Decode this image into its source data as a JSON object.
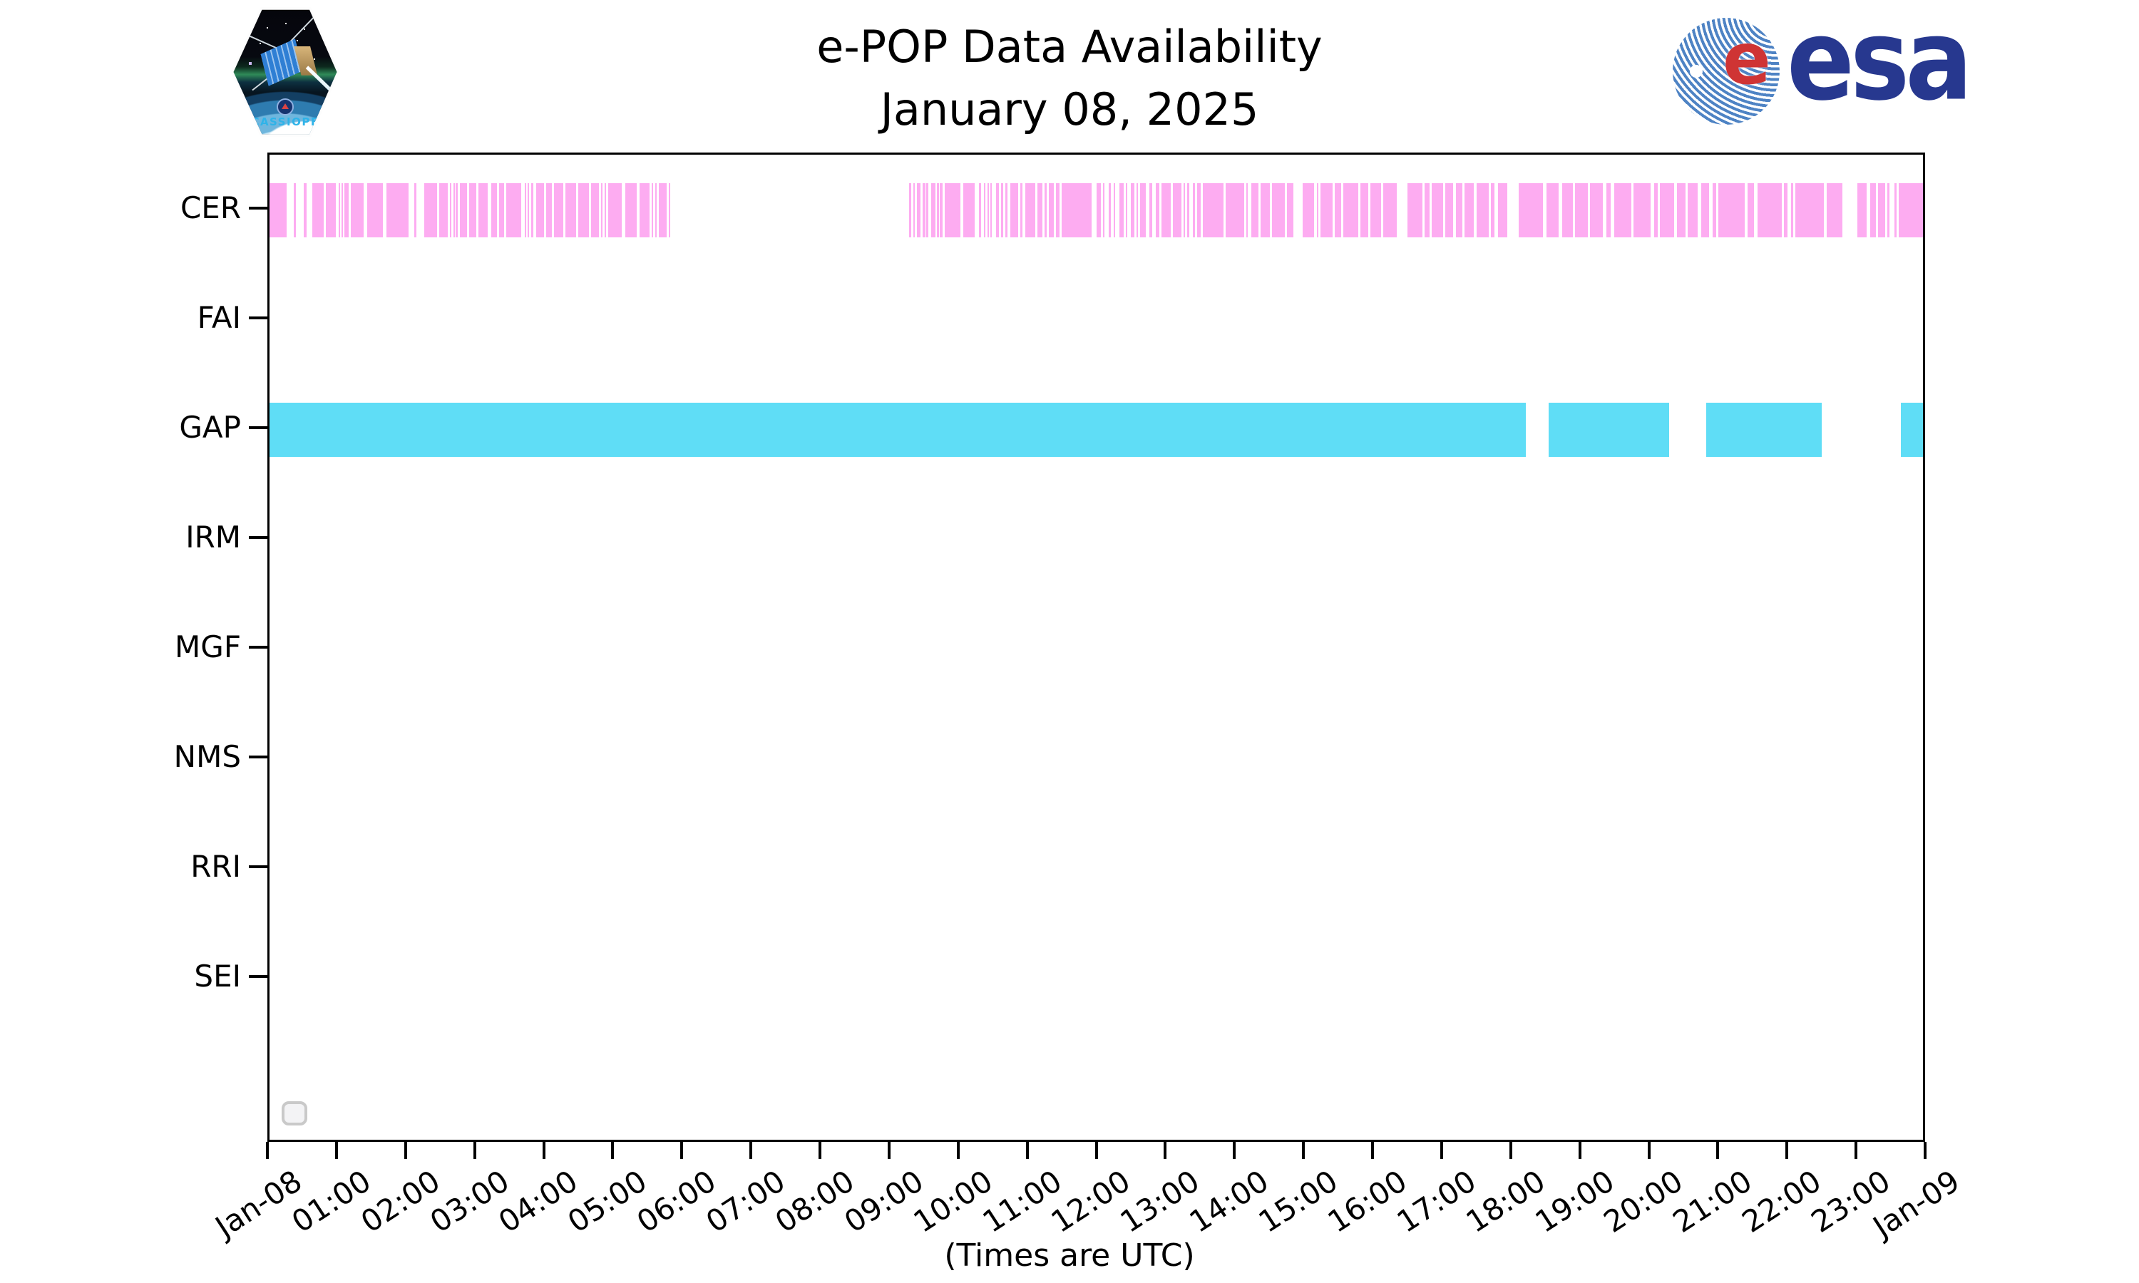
{
  "header": {
    "title": "e-POP Data Availability",
    "subtitle": "January 08, 2025",
    "cassiope_label": "CASSIOPE",
    "esa_wordmark": "esa",
    "esa_e_glyph": "e"
  },
  "footer": {
    "axis_note": "(Times are UTC)"
  },
  "colors": {
    "cer_pink": "#FDACF1",
    "gap_cyan": "#5FDDF6",
    "spine_black": "#000000",
    "esa_blue": "#27388F",
    "esa_stripe_blue": "#4E83C4",
    "esa_red": "#CF3434",
    "cassiope_text_blue": "#2FB3E8",
    "checkbox_border_gray": "#C9C9C9",
    "checkbox_fill_gray": "#F3F3F5"
  },
  "chart_data": {
    "type": "bar",
    "subtype": "timeline-availability",
    "title": "e-POP Data Availability",
    "subtitle": "January 08, 2025",
    "xlabel": "(Times are UTC)",
    "x_unit": "minutes_utc",
    "xlim": [
      0,
      1440
    ],
    "grid": false,
    "legend": null,
    "x_tick_interval_minutes": 60,
    "x_tick_labels": [
      "Jan-08",
      "01:00",
      "02:00",
      "03:00",
      "04:00",
      "05:00",
      "06:00",
      "07:00",
      "08:00",
      "09:00",
      "10:00",
      "11:00",
      "12:00",
      "13:00",
      "14:00",
      "15:00",
      "16:00",
      "17:00",
      "18:00",
      "19:00",
      "20:00",
      "21:00",
      "22:00",
      "23:00",
      "Jan-09"
    ],
    "rows": [
      {
        "label": "CER",
        "color": "#FDACF1",
        "segments": [
          [
            0,
            15
          ],
          [
            21,
            23
          ],
          [
            30,
            32
          ],
          [
            37,
            47
          ],
          [
            49,
            58
          ],
          [
            60,
            61
          ],
          [
            63,
            64
          ],
          [
            65,
            69
          ],
          [
            71,
            82
          ],
          [
            85,
            99
          ],
          [
            102,
            121
          ],
          [
            126,
            128
          ],
          [
            135,
            146
          ],
          [
            148,
            155
          ],
          [
            157,
            158
          ],
          [
            160,
            161
          ],
          [
            162,
            164
          ],
          [
            166,
            172
          ],
          [
            174,
            180
          ],
          [
            182,
            190
          ],
          [
            193,
            198
          ],
          [
            200,
            204
          ],
          [
            206,
            219
          ],
          [
            222,
            223
          ],
          [
            225,
            226
          ],
          [
            228,
            230
          ],
          [
            232,
            239
          ],
          [
            241,
            246
          ],
          [
            248,
            256
          ],
          [
            258,
            267
          ],
          [
            269,
            278
          ],
          [
            280,
            287
          ],
          [
            289,
            290
          ],
          [
            292,
            293
          ],
          [
            295,
            307
          ],
          [
            310,
            320
          ],
          [
            322,
            331
          ],
          [
            333,
            334
          ],
          [
            336,
            337
          ],
          [
            339,
            346
          ],
          [
            348,
            349
          ],
          [
            557,
            559
          ],
          [
            561,
            562
          ],
          [
            564,
            567
          ],
          [
            569,
            571
          ],
          [
            572,
            574
          ],
          [
            576,
            580
          ],
          [
            581,
            583
          ],
          [
            584,
            586
          ],
          [
            588,
            602
          ],
          [
            604,
            614
          ],
          [
            618,
            620
          ],
          [
            622,
            623
          ],
          [
            625,
            626
          ],
          [
            628,
            629
          ],
          [
            633,
            635
          ],
          [
            637,
            639
          ],
          [
            641,
            643
          ],
          [
            645,
            652
          ],
          [
            654,
            656
          ],
          [
            658,
            667
          ],
          [
            669,
            673
          ],
          [
            675,
            677
          ],
          [
            679,
            683
          ],
          [
            685,
            688
          ],
          [
            690,
            716
          ],
          [
            720,
            724
          ],
          [
            726,
            727
          ],
          [
            731,
            733
          ],
          [
            735,
            736
          ],
          [
            740,
            744
          ],
          [
            746,
            747
          ],
          [
            750,
            753
          ],
          [
            755,
            756
          ],
          [
            758,
            763
          ],
          [
            766,
            769
          ],
          [
            772,
            775
          ],
          [
            777,
            785
          ],
          [
            787,
            794
          ],
          [
            796,
            797
          ],
          [
            799,
            801
          ],
          [
            804,
            806
          ],
          [
            808,
            811
          ],
          [
            813,
            831
          ],
          [
            833,
            849
          ],
          [
            851,
            852
          ],
          [
            855,
            861
          ],
          [
            863,
            871
          ],
          [
            873,
            884
          ],
          [
            886,
            892
          ],
          [
            900,
            910
          ],
          [
            912,
            913
          ],
          [
            915,
            926
          ],
          [
            928,
            933
          ],
          [
            935,
            948
          ],
          [
            950,
            957
          ],
          [
            959,
            968
          ],
          [
            970,
            982
          ],
          [
            991,
            1004
          ],
          [
            1006,
            1010
          ],
          [
            1012,
            1022
          ],
          [
            1024,
            1031
          ],
          [
            1033,
            1039
          ],
          [
            1041,
            1049
          ],
          [
            1051,
            1062
          ],
          [
            1064,
            1067
          ],
          [
            1070,
            1078
          ],
          [
            1088,
            1109
          ],
          [
            1112,
            1123
          ],
          [
            1126,
            1135
          ],
          [
            1137,
            1148
          ],
          [
            1150,
            1161
          ],
          [
            1164,
            1168
          ],
          [
            1171,
            1186
          ],
          [
            1188,
            1203
          ],
          [
            1206,
            1209
          ],
          [
            1211,
            1223
          ],
          [
            1226,
            1233
          ],
          [
            1235,
            1244
          ],
          [
            1247,
            1254
          ],
          [
            1257,
            1260
          ],
          [
            1262,
            1285
          ],
          [
            1287,
            1293
          ],
          [
            1296,
            1317
          ],
          [
            1319,
            1322
          ],
          [
            1325,
            1327
          ],
          [
            1329,
            1354
          ],
          [
            1356,
            1370
          ],
          [
            1383,
            1391
          ],
          [
            1394,
            1399
          ],
          [
            1401,
            1407
          ],
          [
            1409,
            1411
          ],
          [
            1415,
            1417
          ],
          [
            1419,
            1440
          ]
        ]
      },
      {
        "label": "FAI",
        "color": "#FDACF1",
        "segments": []
      },
      {
        "label": "GAP",
        "color": "#5FDDF6",
        "segments": [
          [
            0,
            1094
          ],
          [
            1114,
            1219
          ],
          [
            1251,
            1352
          ],
          [
            1421,
            1440
          ]
        ]
      },
      {
        "label": "IRM",
        "color": "#FDACF1",
        "segments": []
      },
      {
        "label": "MGF",
        "color": "#FDACF1",
        "segments": []
      },
      {
        "label": "NMS",
        "color": "#FDACF1",
        "segments": []
      },
      {
        "label": "RRI",
        "color": "#FDACF1",
        "segments": []
      },
      {
        "label": "SEI",
        "color": "#FDACF1",
        "segments": []
      }
    ]
  }
}
